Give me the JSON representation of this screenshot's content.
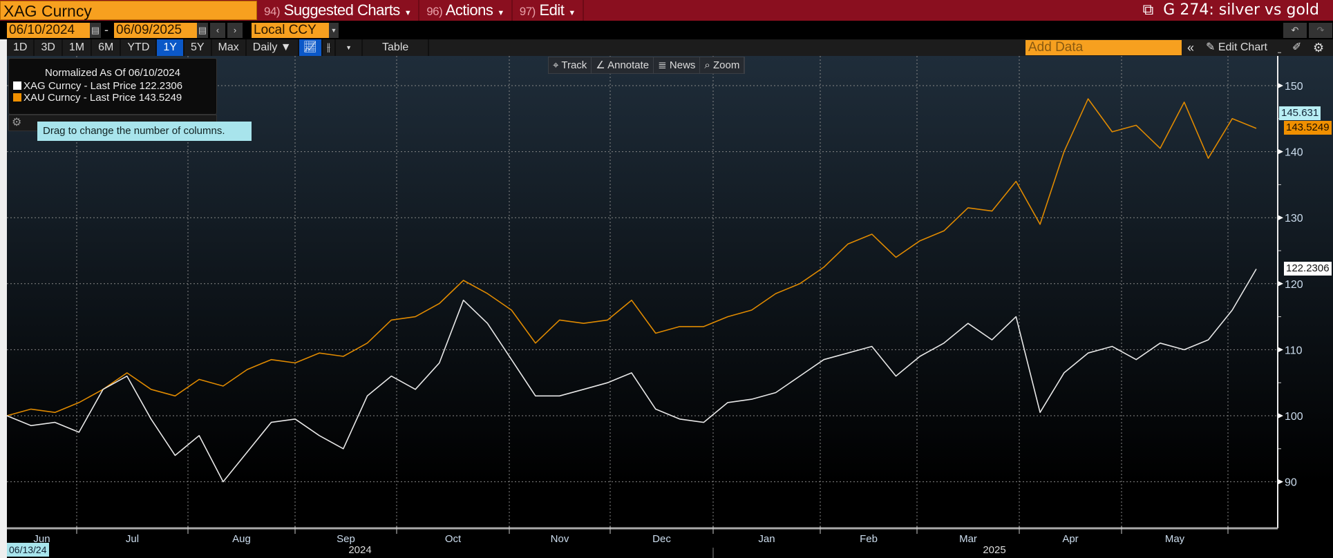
{
  "topbar": {
    "security": "XAG Curncy",
    "menus": [
      {
        "num": "94)",
        "label": "Suggested Charts"
      },
      {
        "num": "96)",
        "label": "Actions"
      },
      {
        "num": "97)",
        "label": "Edit"
      }
    ],
    "title": "G 274: silver vs gold"
  },
  "controls": {
    "start_date": "06/10/2024",
    "end_date": "06/09/2025",
    "currency": "Local CCY",
    "periods": [
      "1D",
      "3D",
      "1M",
      "6M",
      "YTD",
      "1Y",
      "5Y",
      "Max"
    ],
    "active_period": "1Y",
    "frequency": "Daily ▼",
    "table": "Table",
    "add_data_placeholder": "Add Data",
    "edit_chart": "Edit Chart"
  },
  "legend": {
    "title": "Normalized As Of 06/10/2024",
    "items": [
      {
        "label": "XAG Curncy - Last Price 122.2306",
        "color": "#ffffff"
      },
      {
        "label": "XAU Curncy - Last Price 143.5249",
        "color": "#f09000"
      }
    ]
  },
  "tooltip": "Drag to change the number of columns.",
  "tools": [
    "Track",
    "Annotate",
    "News",
    "Zoom"
  ],
  "tags": {
    "cursor": "145.631",
    "xau": "143.5249",
    "xag": "122.2306"
  },
  "start_marker": "06/13/24",
  "chart_data": {
    "type": "line",
    "x_start": "06/10/2024",
    "x_end": "06/09/2025",
    "x_interval": "weekly",
    "ylim": [
      84,
      154
    ],
    "yticks": [
      90,
      100,
      110,
      120,
      130,
      140,
      150
    ],
    "months": [
      "Jun",
      "Jul",
      "Aug",
      "Sep",
      "Oct",
      "Nov",
      "Dec",
      "Jan",
      "Feb",
      "Mar",
      "Apr",
      "May"
    ],
    "years": [
      "2024",
      "2025"
    ],
    "series": [
      {
        "name": "XAU Curncy",
        "color": "#e08a00",
        "values": [
          100,
          101,
          100.5,
          102,
          104,
          106.5,
          104,
          103,
          105.5,
          104.5,
          107,
          108.5,
          108,
          109.5,
          109,
          111,
          114.5,
          115,
          117,
          120.5,
          118.5,
          116,
          111,
          114.5,
          114,
          114.5,
          117.5,
          112.5,
          113.5,
          113.5,
          115,
          116,
          118.5,
          120,
          122.5,
          126,
          127.5,
          124,
          126.5,
          128,
          131.5,
          131,
          135.5,
          129,
          140,
          148,
          143,
          144,
          140.5,
          147.5,
          139,
          145,
          143.5249
        ]
      },
      {
        "name": "XAG Curncy",
        "color": "#e8e8e8",
        "values": [
          100,
          98.5,
          99,
          97.5,
          104,
          106,
          99.5,
          94,
          97,
          90,
          94.5,
          99,
          99.5,
          97,
          95,
          103,
          106,
          104,
          108,
          117.5,
          114,
          108.5,
          103,
          103,
          104,
          105,
          106.5,
          101,
          99.5,
          99,
          102,
          102.5,
          103.5,
          106,
          108.5,
          109.5,
          110.5,
          106,
          109,
          111,
          114,
          111.5,
          115,
          100.5,
          106.5,
          109.5,
          110.5,
          108.5,
          111,
          110,
          111.5,
          116,
          122.2306
        ]
      }
    ]
  }
}
